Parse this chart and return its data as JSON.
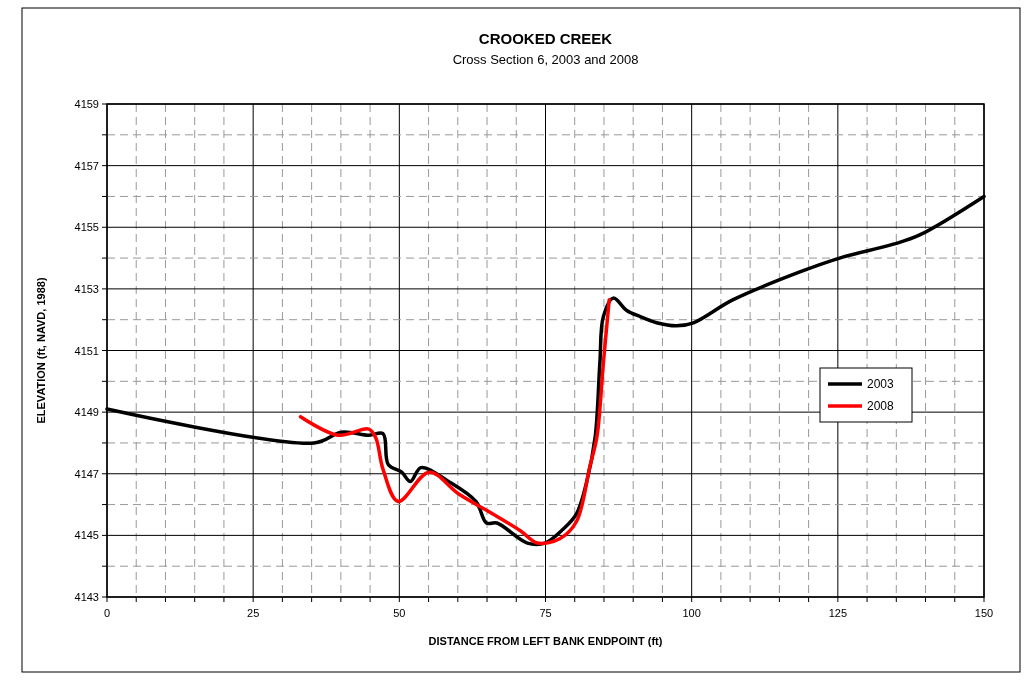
{
  "chart_data": {
    "type": "line",
    "title": "CROOKED CREEK",
    "subtitle": "Cross Section 6, 2003 and 2008",
    "xlabel": "DISTANCE FROM LEFT BANK ENDPOINT (ft)",
    "ylabel": "ELEVATION (ft, NAVD, 1988)",
    "xlim": [
      0,
      150
    ],
    "ylim": [
      4143,
      4159
    ],
    "xticks": [
      0,
      {
        "value": 5,
        "label": null
      },
      {
        "value": 10,
        "label": null
      },
      {
        "value": 15,
        "label": null
      },
      {
        "value": 20,
        "label": null
      },
      25,
      {
        "value": 30,
        "label": null
      },
      {
        "value": 35,
        "label": null
      },
      {
        "value": 40,
        "label": null
      },
      {
        "value": 45,
        "label": null
      },
      50,
      {
        "value": 55,
        "label": null
      },
      {
        "value": 60,
        "label": null
      },
      {
        "value": 65,
        "label": null
      },
      {
        "value": 70,
        "label": null
      },
      75,
      {
        "value": 80,
        "label": null
      },
      {
        "value": 85,
        "label": null
      },
      {
        "value": 90,
        "label": null
      },
      {
        "value": 95,
        "label": null
      },
      100,
      {
        "value": 105,
        "label": null
      },
      {
        "value": 110,
        "label": null
      },
      {
        "value": 115,
        "label": null
      },
      {
        "value": 120,
        "label": null
      },
      125,
      {
        "value": 130,
        "label": null
      },
      {
        "value": 135,
        "label": null
      },
      {
        "value": 140,
        "label": null
      },
      {
        "value": 145,
        "label": null
      },
      150
    ],
    "yticks": [
      4143,
      {
        "value": 4144,
        "label": null
      },
      4145,
      {
        "value": 4146,
        "label": null
      },
      4147,
      {
        "value": 4148,
        "label": null
      },
      4149,
      {
        "value": 4150,
        "label": null
      },
      4151,
      {
        "value": 4152,
        "label": null
      },
      4153,
      {
        "value": 4154,
        "label": null
      },
      4155,
      {
        "value": 4156,
        "label": null
      },
      4157,
      {
        "value": 4158,
        "label": null
      },
      4159
    ],
    "grid": true,
    "legend": "right",
    "marker": "none",
    "line_style": "solid",
    "series": [
      {
        "name": "2003",
        "color": "#000000",
        "x": [
          0,
          35.4,
          40.1,
          44.8,
          47.2,
          48.1,
          50.4,
          51.9,
          53.7,
          58.4,
          63.1,
          64.9,
          66.7,
          71.9,
          74.9,
          78.0,
          80.3,
          82.0,
          83.5,
          84.3,
          84.9,
          86.6,
          88.9,
          91.2,
          94.0,
          97.4,
          100.3,
          107.1,
          118.5,
          125.3,
          134.5,
          139.0,
          150
        ],
        "values": [
          4149.1,
          4148.0,
          4148.35,
          4148.25,
          4148.3,
          4147.3,
          4147.05,
          4146.75,
          4147.2,
          4146.75,
          4146.1,
          4145.4,
          4145.4,
          4144.75,
          4144.75,
          4145.2,
          4145.7,
          4146.7,
          4148.2,
          4150.6,
          4152.1,
          4152.7,
          4152.3,
          4152.1,
          4151.9,
          4151.8,
          4151.9,
          4152.65,
          4153.55,
          4154.0,
          4154.45,
          4154.75,
          4156.0
        ]
      },
      {
        "name": "2008",
        "color": "#ff0000",
        "x": [
          33.1,
          39.5,
          44.8,
          46.0,
          47.2,
          49.8,
          55.1,
          60.1,
          65.5,
          70.7,
          73.6,
          77.5,
          80.3,
          82.6,
          83.8,
          84.9,
          85.9
        ],
        "values": [
          4148.85,
          4148.25,
          4148.45,
          4148.15,
          4147.15,
          4146.1,
          4147.05,
          4146.35,
          4145.75,
          4145.15,
          4144.75,
          4144.9,
          4145.45,
          4147.25,
          4148.2,
          4150.6,
          4152.65
        ]
      }
    ]
  }
}
